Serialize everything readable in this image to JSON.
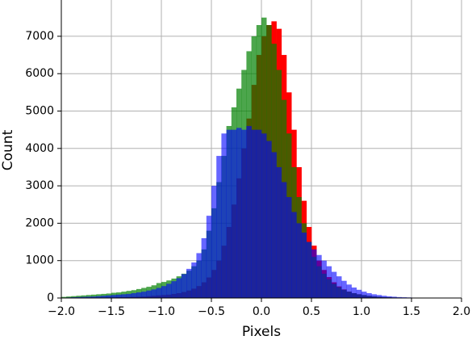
{
  "chart_data": {
    "type": "histogram",
    "xlabel": "Pixels",
    "ylabel": "Count",
    "bins": [
      -2.0,
      -1.95,
      -1.9,
      -1.85,
      -1.8,
      -1.75,
      -1.7,
      -1.65,
      -1.6,
      -1.55,
      -1.5,
      -1.45,
      -1.4,
      -1.35,
      -1.3,
      -1.25,
      -1.2,
      -1.15,
      -1.1,
      -1.05,
      -1.0,
      -0.95,
      -0.9,
      -0.85,
      -0.8,
      -0.75,
      -0.7,
      -0.65,
      -0.6,
      -0.55,
      -0.5,
      -0.45,
      -0.4,
      -0.35,
      -0.3,
      -0.25,
      -0.2,
      -0.15,
      -0.1,
      -0.05,
      0.0,
      0.05,
      0.1,
      0.15,
      0.2,
      0.25,
      0.3,
      0.35,
      0.4,
      0.45,
      0.5,
      0.55,
      0.6,
      0.65,
      0.7,
      0.75,
      0.8,
      0.85,
      0.9,
      0.95,
      1.0,
      1.05,
      1.1,
      1.15,
      1.2,
      1.25,
      1.3,
      1.35,
      1.4,
      1.45,
      1.5,
      1.55,
      1.6,
      1.65,
      1.7,
      1.75,
      1.8,
      1.85,
      1.9,
      1.95,
      2.0
    ],
    "series": [
      {
        "color": "#ff0000",
        "alpha": 1.0,
        "values": [
          5,
          5,
          5,
          5,
          5,
          10,
          10,
          10,
          10,
          15,
          15,
          20,
          20,
          25,
          30,
          35,
          40,
          50,
          60,
          70,
          80,
          90,
          110,
          130,
          160,
          200,
          250,
          320,
          420,
          550,
          750,
          1000,
          1400,
          1900,
          2500,
          3200,
          4000,
          4800,
          5700,
          6500,
          7000,
          7300,
          7400,
          7200,
          6500,
          5500,
          4500,
          3500,
          2600,
          1900,
          1400,
          1000,
          750,
          560,
          420,
          310,
          230,
          170,
          130,
          100,
          75,
          55,
          40,
          30,
          22,
          16,
          12,
          9,
          7,
          5,
          4,
          3,
          3,
          2,
          2,
          1,
          1,
          0,
          0,
          0
        ]
      },
      {
        "color": "#008000",
        "alpha": 0.7,
        "values": [
          30,
          40,
          50,
          60,
          70,
          80,
          90,
          100,
          110,
          120,
          140,
          150,
          170,
          190,
          210,
          240,
          270,
          300,
          340,
          400,
          430,
          470,
          520,
          580,
          650,
          730,
          850,
          1000,
          1300,
          1800,
          2400,
          3100,
          3800,
          4600,
          5100,
          5600,
          6100,
          6600,
          7000,
          7300,
          7500,
          7300,
          6800,
          6100,
          5300,
          4400,
          3500,
          2700,
          2000,
          1500,
          1100,
          850,
          650,
          500,
          380,
          290,
          220,
          170,
          130,
          100,
          80,
          60,
          45,
          35,
          25,
          20,
          15,
          12,
          10,
          8,
          6,
          5,
          4,
          3,
          2,
          2,
          1,
          1,
          0,
          0
        ]
      },
      {
        "color": "#0000ff",
        "alpha": 0.6,
        "values": [
          10,
          15,
          20,
          25,
          30,
          35,
          40,
          50,
          60,
          70,
          80,
          90,
          100,
          110,
          130,
          150,
          170,
          200,
          230,
          270,
          320,
          380,
          450,
          530,
          640,
          780,
          950,
          1200,
          1600,
          2200,
          3000,
          3800,
          4400,
          4500,
          4500,
          4550,
          4500,
          4600,
          4500,
          4500,
          4400,
          4200,
          3900,
          3500,
          3100,
          2700,
          2300,
          2000,
          1750,
          1500,
          1300,
          1150,
          1000,
          850,
          700,
          580,
          460,
          360,
          280,
          220,
          170,
          130,
          100,
          80,
          60,
          45,
          35,
          25,
          20,
          15,
          10,
          8,
          6,
          4,
          3,
          2,
          1,
          1,
          0,
          0
        ]
      }
    ],
    "xlim": [
      -2,
      2
    ],
    "ylim": [
      0,
      7970
    ],
    "xticks": [
      {
        "value": -2,
        "label": "−2.0"
      },
      {
        "value": -1.5,
        "label": "−1.5"
      },
      {
        "value": -1,
        "label": "−1.0"
      },
      {
        "value": -0.5,
        "label": "−0.5"
      },
      {
        "value": 0,
        "label": "0.0"
      },
      0.5,
      {
        "value": 1,
        "label": "1.0"
      },
      1.5,
      {
        "value": 2,
        "label": "2.0"
      }
    ],
    "yticks": [
      0,
      1000,
      2000,
      3000,
      4000,
      5000,
      6000,
      7000
    ],
    "grid": true
  }
}
